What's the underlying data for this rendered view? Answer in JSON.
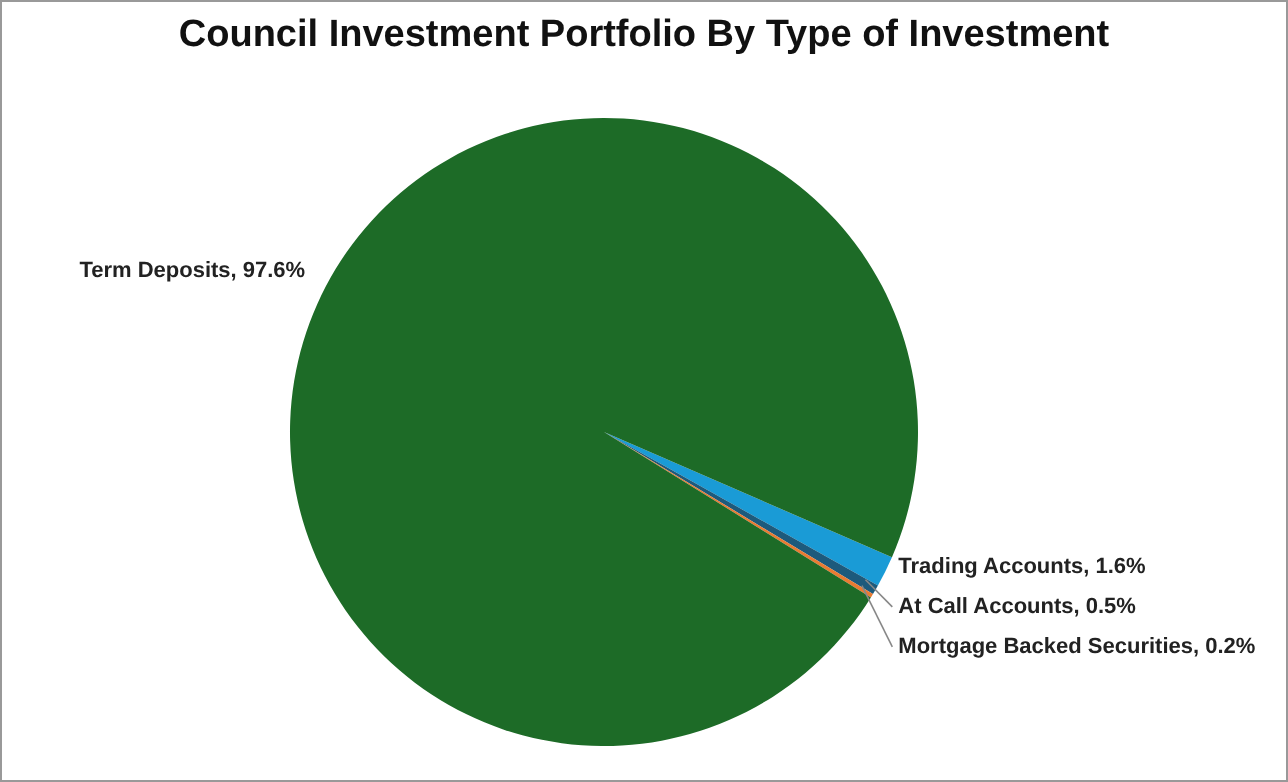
{
  "chart_data": {
    "type": "pie",
    "title": "Council Investment Portfolio By Type of Investment",
    "categories": [
      "Trading Accounts",
      "At Call Accounts",
      "Mortgage Backed Securities",
      "Term Deposits"
    ],
    "values": [
      1.6,
      0.5,
      0.2,
      97.6
    ],
    "colors": [
      "#1a9bd6",
      "#1d5a7c",
      "#e97b32",
      "#1d6b27"
    ],
    "value_labels": [
      "1.6%",
      "0.5%",
      "0.2%",
      "97.6%"
    ],
    "legend": false
  }
}
